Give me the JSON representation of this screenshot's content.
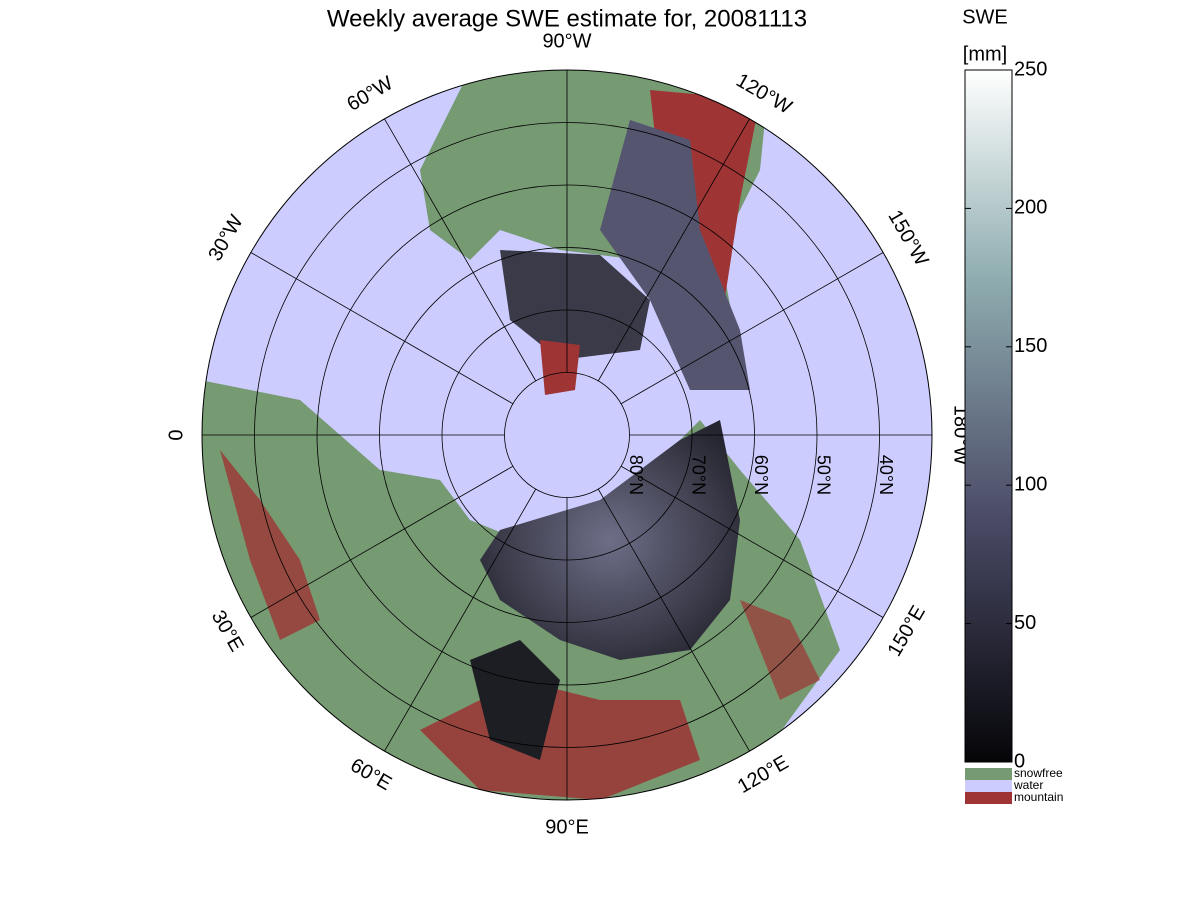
{
  "map": {
    "title": "Weekly average SWE estimate for, 20081113",
    "meridians": [
      {
        "value": -90,
        "label": "90°W"
      },
      {
        "value": -60,
        "label": "60°W"
      },
      {
        "value": -120,
        "label": "120°W"
      },
      {
        "value": -30,
        "label": "30°W"
      },
      {
        "value": -150,
        "label": "150°W"
      },
      {
        "value": 0,
        "label": "0"
      },
      {
        "value": 180,
        "label": "180°W"
      },
      {
        "value": 30,
        "label": "30°E"
      },
      {
        "value": 150,
        "label": "150°E"
      },
      {
        "value": 60,
        "label": "60°E"
      },
      {
        "value": 120,
        "label": "120°E"
      },
      {
        "value": 90,
        "label": "90°E"
      }
    ],
    "parallels": [
      {
        "value": 80,
        "label": "80°N"
      },
      {
        "value": 70,
        "label": "70°N"
      },
      {
        "value": 60,
        "label": "60°N"
      },
      {
        "value": 50,
        "label": "50°N"
      },
      {
        "value": 40,
        "label": "40°N"
      }
    ],
    "colorbar": {
      "title": "SWE",
      "unit": "[mm]",
      "lim": [
        0,
        250
      ],
      "ticks": [
        0,
        50,
        100,
        150,
        200,
        250
      ]
    },
    "legend": [
      {
        "name": "snowfree",
        "color": "#769a72"
      },
      {
        "name": "water",
        "color": "#ccccff"
      },
      {
        "name": "mountain",
        "color": "#9e3434"
      }
    ]
  }
}
